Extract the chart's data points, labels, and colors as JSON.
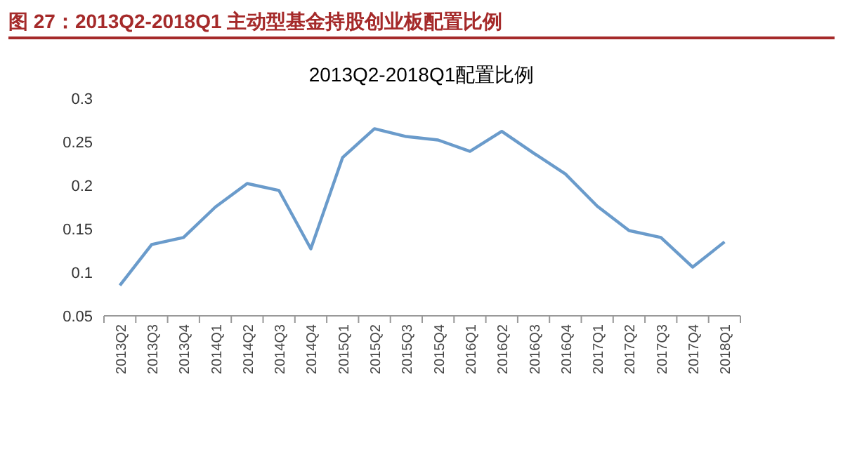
{
  "chart_data": {
    "type": "line",
    "title": "图 27：2013Q2-2018Q1 主动型基金持股创业板配置比例",
    "subtitle": "2013Q2-2018Q1配置比例",
    "categories": [
      "2013Q2",
      "2013Q3",
      "2013Q4",
      "2014Q1",
      "2014Q2",
      "2014Q3",
      "2014Q4",
      "2015Q1",
      "2015Q2",
      "2015Q3",
      "2015Q4",
      "2016Q1",
      "2016Q2",
      "2016Q3",
      "2016Q4",
      "2017Q1",
      "2017Q2",
      "2017Q3",
      "2017Q4",
      "2018Q1"
    ],
    "series": [
      {
        "color": "#6a9bcb",
        "values": [
          0.085,
          0.132,
          0.14,
          0.175,
          0.202,
          0.194,
          0.127,
          0.232,
          0.265,
          0.256,
          0.252,
          0.239,
          0.262,
          0.237,
          0.213,
          0.176,
          0.148,
          0.14,
          0.106,
          0.135
        ]
      }
    ],
    "ylim": [
      0.05,
      0.3
    ],
    "yticks": [
      0.05,
      0.1,
      0.15,
      0.2,
      0.25,
      0.3
    ],
    "grid": false,
    "marker": "none",
    "line_style": "solid"
  }
}
